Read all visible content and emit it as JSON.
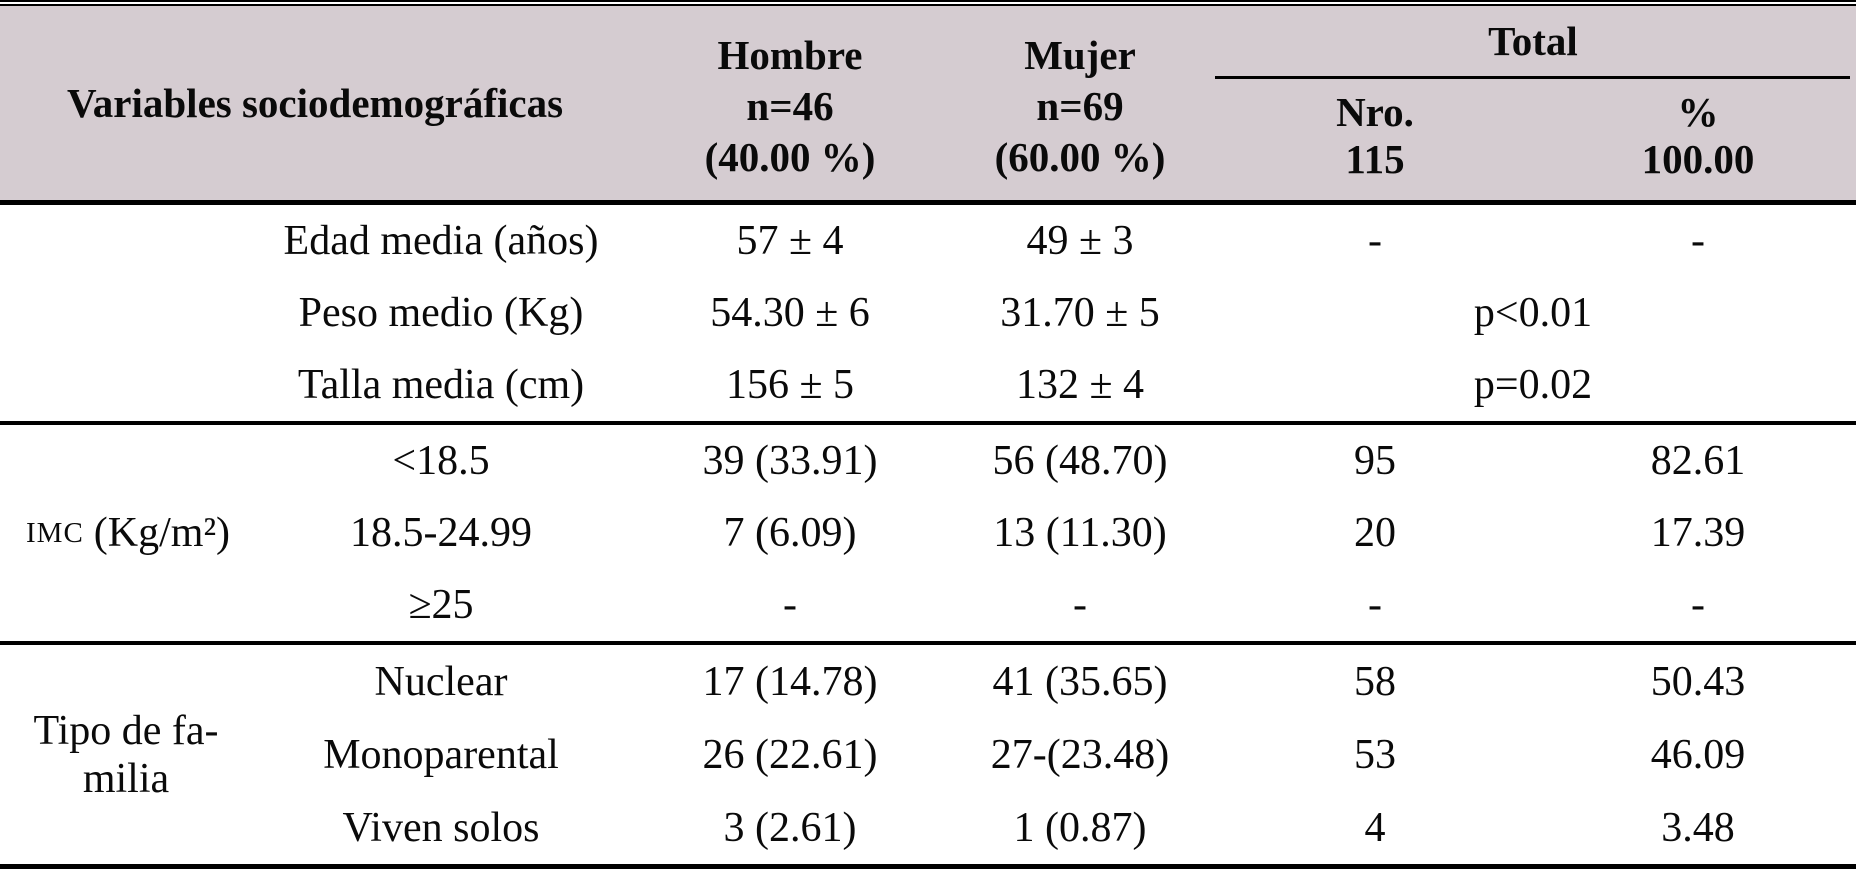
{
  "header": {
    "variables": "Variables sociodemográficas",
    "hombre": {
      "title": "Hombre",
      "n": "n=46",
      "pct": "(40.00 %)"
    },
    "mujer": {
      "title": "Mujer",
      "n": "n=69",
      "pct": "(60.00 %)"
    },
    "total": {
      "title": "Total",
      "col1_label": "Nro.",
      "col1_value": "115",
      "col2_label": "%",
      "col2_value": "100.00"
    }
  },
  "sections": [
    {
      "rows": [
        {
          "label": "Edad media (años)",
          "hombre": "57 ± 4",
          "mujer": "49 ± 3",
          "nro": "-",
          "pct": "-"
        },
        {
          "label": "Peso medio (Kg)",
          "hombre": "54.30 ± 6",
          "mujer": "31.70 ± 5",
          "p": "p<0.01"
        },
        {
          "label": "Talla media (cm)",
          "hombre": "156 ± 5",
          "mujer": "132 ± 4",
          "p": "p=0.02"
        }
      ]
    },
    {
      "group": {
        "abbr": "IMC",
        "unit": "(Kg/m²)"
      },
      "rows": [
        {
          "label": "<18.5",
          "hombre": "39 (33.91)",
          "mujer": "56 (48.70)",
          "nro": "95",
          "pct": "82.61"
        },
        {
          "label": "18.5-24.99",
          "hombre": "7 (6.09)",
          "mujer": "13 (11.30)",
          "nro": "20",
          "pct": "17.39"
        },
        {
          "label": "≥25",
          "hombre": "-",
          "mujer": "-",
          "nro": "-",
          "pct": "-"
        }
      ]
    },
    {
      "group": {
        "line1": "Tipo de fa-",
        "line2": "milia"
      },
      "rows": [
        {
          "label": "Nuclear",
          "hombre": "17 (14.78)",
          "mujer": "41 (35.65)",
          "nro": "58",
          "pct": "50.43"
        },
        {
          "label": "Monoparental",
          "hombre": "26 (22.61)",
          "mujer": "27-(23.48)",
          "nro": "53",
          "pct": "46.09"
        },
        {
          "label": "Viven solos",
          "hombre": "3 (2.61)",
          "mujer": "1 (0.87)",
          "nro": "4",
          "pct": "3.48"
        }
      ]
    }
  ],
  "colors": {
    "header_bg": "#d5ccd1",
    "rule": "#000000",
    "text": "#0a0a0a"
  }
}
